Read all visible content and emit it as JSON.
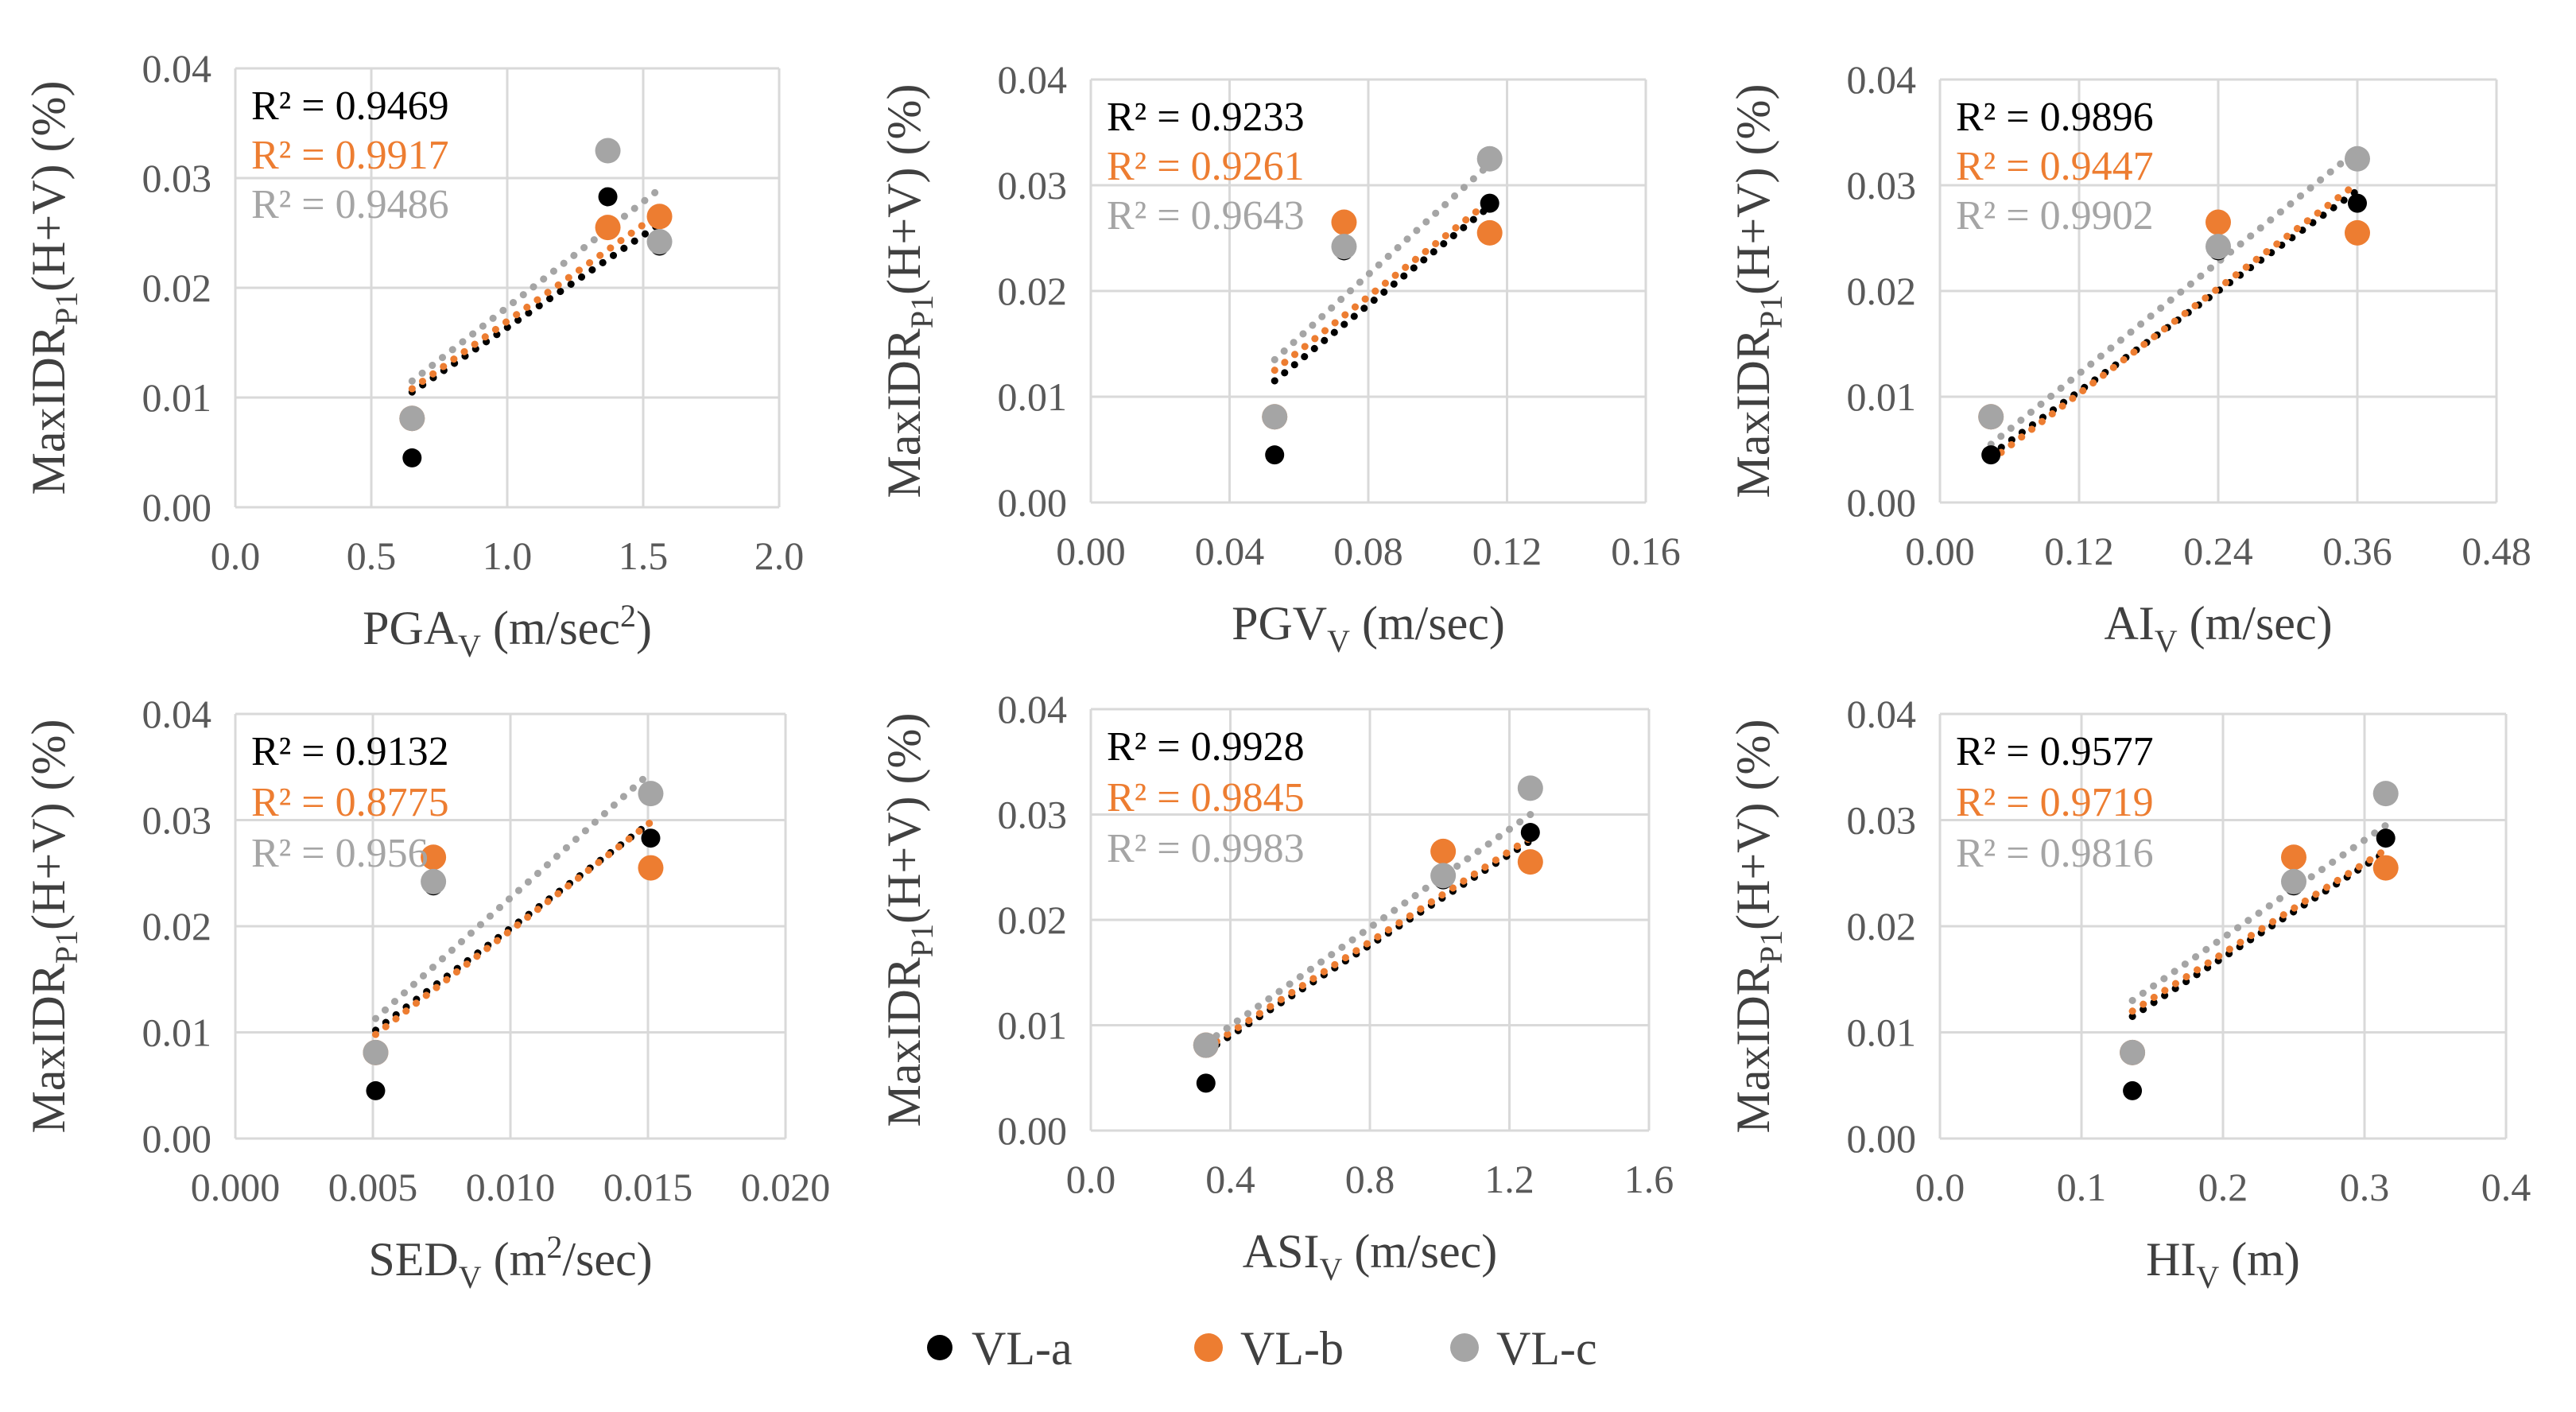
{
  "colors": {
    "VL-a": "#000000",
    "VL-b": "#ED7D31",
    "VL-c": "#A5A5A5"
  },
  "legend": [
    "VL-a",
    "VL-b",
    "VL-c"
  ],
  "chart_data": [
    {
      "type": "scatter",
      "id": "pga",
      "xlabel": {
        "main": "PGA",
        "sub": "V",
        "unit": " (m/sec",
        "sup": "2",
        "tail": ")"
      },
      "ylabel": "MaxIDR",
      "ylabel_sub": "P1",
      "ylabel_tail": "(H+V) (%)",
      "xlim": [
        0.0,
        2.0
      ],
      "ylim": [
        0.0,
        0.04
      ],
      "xticks": [
        "0.0",
        "0.5",
        "1.0",
        "1.5",
        "2.0"
      ],
      "yticks": [
        "0.00",
        "0.01",
        "0.02",
        "0.03",
        "0.04"
      ],
      "series": [
        {
          "name": "VL-a",
          "x": [
            0.65,
            1.37,
            1.56
          ],
          "y": [
            0.0045,
            0.0283,
            0.0238
          ],
          "trend": [
            0.0105,
            0.0258
          ],
          "r2": "R² = 0.9469"
        },
        {
          "name": "VL-b",
          "x": [
            0.65,
            1.37,
            1.56
          ],
          "y": [
            0.0081,
            0.0255,
            0.0265
          ],
          "trend": [
            0.0108,
            0.0268
          ],
          "r2": "R² = 0.9917"
        },
        {
          "name": "VL-c",
          "x": [
            0.65,
            1.37,
            1.56
          ],
          "y": [
            0.0081,
            0.0325,
            0.0242
          ],
          "trend": [
            0.0115,
            0.029
          ],
          "r2": "R² = 0.9486"
        }
      ]
    },
    {
      "type": "scatter",
      "id": "pgv",
      "xlabel": {
        "main": "PGV",
        "sub": "V",
        "unit": " (m/sec)",
        "sup": "",
        "tail": ""
      },
      "ylabel": "MaxIDR",
      "ylabel_sub": "P1",
      "ylabel_tail": "(H+V) (%)",
      "xlim": [
        0.0,
        0.16
      ],
      "ylim": [
        0.0,
        0.04
      ],
      "xticks": [
        "0.00",
        "0.04",
        "0.08",
        "0.12",
        "0.16"
      ],
      "yticks": [
        "0.00",
        "0.01",
        "0.02",
        "0.03",
        "0.04"
      ],
      "series": [
        {
          "name": "VL-a",
          "x": [
            0.053,
            0.073,
            0.115
          ],
          "y": [
            0.0045,
            0.0238,
            0.0283
          ],
          "trend": [
            0.0115,
            0.028
          ],
          "r2": "R² = 0.9233"
        },
        {
          "name": "VL-b",
          "x": [
            0.053,
            0.073,
            0.115
          ],
          "y": [
            0.0081,
            0.0265,
            0.0255
          ],
          "trend": [
            0.0125,
            0.0285
          ],
          "r2": "R² = 0.9261"
        },
        {
          "name": "VL-c",
          "x": [
            0.053,
            0.073,
            0.115
          ],
          "y": [
            0.0081,
            0.0242,
            0.0325
          ],
          "trend": [
            0.0135,
            0.032
          ],
          "r2": "R² = 0.9643"
        }
      ]
    },
    {
      "type": "scatter",
      "id": "ai",
      "xlabel": {
        "main": "AI",
        "sub": "V",
        "unit": " (m/sec)",
        "sup": "",
        "tail": ""
      },
      "ylabel": "MaxIDR",
      "ylabel_sub": "P1",
      "ylabel_tail": "(H+V) (%)",
      "xlim": [
        0.0,
        0.48
      ],
      "ylim": [
        0.0,
        0.04
      ],
      "xticks": [
        "0.00",
        "0.12",
        "0.24",
        "0.36",
        "0.48"
      ],
      "yticks": [
        "0.00",
        "0.01",
        "0.02",
        "0.03",
        "0.04"
      ],
      "series": [
        {
          "name": "VL-a",
          "x": [
            0.044,
            0.24,
            0.36
          ],
          "y": [
            0.0045,
            0.0238,
            0.0283
          ],
          "trend": [
            0.0045,
            0.0295
          ],
          "r2": "R² = 0.9896"
        },
        {
          "name": "VL-b",
          "x": [
            0.044,
            0.24,
            0.36
          ],
          "y": [
            0.0081,
            0.0265,
            0.0255
          ],
          "trend": [
            0.004,
            0.0302
          ],
          "r2": "R² = 0.9447"
        },
        {
          "name": "VL-c",
          "x": [
            0.044,
            0.24,
            0.36
          ],
          "y": [
            0.0081,
            0.0242,
            0.0325
          ],
          "trend": [
            0.0055,
            0.0333
          ],
          "r2": "R² = 0.9902"
        }
      ]
    },
    {
      "type": "scatter",
      "id": "sed",
      "xlabel": {
        "main": "SED",
        "sub": "V",
        "unit": " (m",
        "sup": "2",
        "tail": "/sec)"
      },
      "ylabel": "MaxIDR",
      "ylabel_sub": "P1",
      "ylabel_tail": "(H+V) (%)",
      "xlim": [
        0.0,
        0.02
      ],
      "ylim": [
        0.0,
        0.04
      ],
      "xticks": [
        "0.000",
        "0.005",
        "0.010",
        "0.015",
        "0.020"
      ],
      "yticks": [
        "0.00",
        "0.01",
        "0.02",
        "0.03",
        "0.04"
      ],
      "series": [
        {
          "name": "VL-a",
          "x": [
            0.0051,
            0.0072,
            0.0151
          ],
          "y": [
            0.0045,
            0.0238,
            0.0283
          ],
          "trend": [
            0.0102,
            0.0298
          ],
          "r2": "R² = 0.9132"
        },
        {
          "name": "VL-b",
          "x": [
            0.0051,
            0.0072,
            0.0151
          ],
          "y": [
            0.0081,
            0.0265,
            0.0255
          ],
          "trend": [
            0.0098,
            0.0298
          ],
          "r2": "R² = 0.8775"
        },
        {
          "name": "VL-c",
          "x": [
            0.0051,
            0.0072,
            0.0151
          ],
          "y": [
            0.0081,
            0.0242,
            0.0325
          ],
          "trend": [
            0.0113,
            0.0345
          ],
          "r2": "R² = 0.956"
        }
      ]
    },
    {
      "type": "scatter",
      "id": "asi",
      "xlabel": {
        "main": "ASI",
        "sub": "V",
        "unit": " (m/sec)",
        "sup": "",
        "tail": ""
      },
      "ylabel": "MaxIDR",
      "ylabel_sub": "P1",
      "ylabel_tail": "(H+V) (%)",
      "xlim": [
        0.0,
        1.6
      ],
      "ylim": [
        0.0,
        0.04
      ],
      "xticks": [
        "0.0",
        "0.4",
        "0.8",
        "1.2",
        "1.6"
      ],
      "yticks": [
        "0.00",
        "0.01",
        "0.02",
        "0.03",
        "0.04"
      ],
      "series": [
        {
          "name": "VL-a",
          "x": [
            0.33,
            1.01,
            1.26
          ],
          "y": [
            0.0045,
            0.0238,
            0.0283
          ],
          "trend": [
            0.0075,
            0.0275
          ],
          "r2": "R² = 0.9928"
        },
        {
          "name": "VL-b",
          "x": [
            0.33,
            1.01,
            1.26
          ],
          "y": [
            0.0081,
            0.0265,
            0.0255
          ],
          "trend": [
            0.0078,
            0.0278
          ],
          "r2": "R² = 0.9845"
        },
        {
          "name": "VL-c",
          "x": [
            0.33,
            1.01,
            1.26
          ],
          "y": [
            0.0081,
            0.0242,
            0.0325
          ],
          "trend": [
            0.0083,
            0.03
          ],
          "r2": "R² = 0.9983"
        }
      ]
    },
    {
      "type": "scatter",
      "id": "hi",
      "xlabel": {
        "main": "HI",
        "sub": "V",
        "unit": " (m)",
        "sup": "",
        "tail": ""
      },
      "ylabel": "MaxIDR",
      "ylabel_sub": "P1",
      "ylabel_tail": "(H+V) (%)",
      "xlim": [
        0.0,
        0.4
      ],
      "ylim": [
        0.0,
        0.04
      ],
      "xticks": [
        "0.0",
        "0.1",
        "0.2",
        "0.3",
        "0.4"
      ],
      "yticks": [
        "0.00",
        "0.01",
        "0.02",
        "0.03",
        "0.04"
      ],
      "series": [
        {
          "name": "VL-a",
          "x": [
            0.136,
            0.25,
            0.315
          ],
          "y": [
            0.0045,
            0.0238,
            0.0283
          ],
          "trend": [
            0.0115,
            0.027
          ],
          "r2": "R² = 0.9577"
        },
        {
          "name": "VL-b",
          "x": [
            0.136,
            0.25,
            0.315
          ],
          "y": [
            0.0081,
            0.0265,
            0.0255
          ],
          "trend": [
            0.012,
            0.0272
          ],
          "r2": "R² = 0.9719"
        },
        {
          "name": "VL-c",
          "x": [
            0.136,
            0.25,
            0.315
          ],
          "y": [
            0.0081,
            0.0242,
            0.0325
          ],
          "trend": [
            0.013,
            0.0295
          ],
          "r2": "R² = 0.9816"
        }
      ]
    }
  ]
}
